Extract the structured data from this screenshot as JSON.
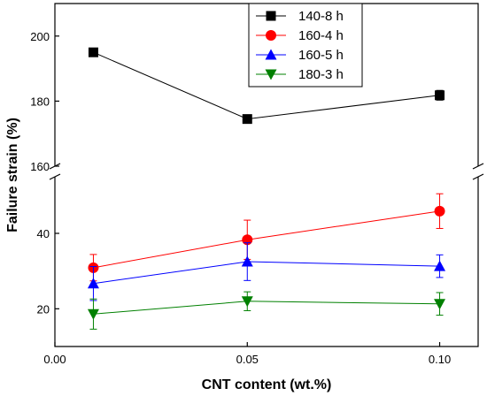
{
  "chart_data": {
    "type": "line",
    "title": "",
    "xlabel": "CNT content (wt.%)",
    "ylabel": "Failure strain (%)",
    "xlim": [
      0.0,
      0.11
    ],
    "xticks": [
      "0.00",
      "0.05",
      "0.10"
    ],
    "xtick_values": [
      0.0,
      0.05,
      0.1
    ],
    "y_broken_axis": true,
    "y_segments": [
      {
        "name": "upper",
        "ylim": [
          160,
          210
        ],
        "ticks": [
          160,
          180,
          200
        ],
        "tick_labels": [
          "160",
          "180",
          "200"
        ]
      },
      {
        "name": "lower",
        "ylim": [
          10,
          55
        ],
        "ticks": [
          20,
          40
        ],
        "tick_labels": [
          "20",
          "40"
        ]
      }
    ],
    "legend": {
      "position": "top-right"
    },
    "series": [
      {
        "name": "140-8 h",
        "color": "#000000",
        "marker": "square",
        "x": [
          0.01,
          0.05,
          0.1
        ],
        "y": [
          195.0,
          174.5,
          181.8
        ],
        "err": [
          0.0,
          0.0,
          1.5
        ]
      },
      {
        "name": "160-4 h",
        "color": "#ff0000",
        "marker": "circle",
        "x": [
          0.01,
          0.05,
          0.1
        ],
        "y": [
          30.9,
          38.3,
          45.9
        ],
        "err": [
          3.5,
          5.2,
          4.6
        ]
      },
      {
        "name": "160-5 h",
        "color": "#0000ff",
        "marker": "triangle-up",
        "x": [
          0.01,
          0.05,
          0.1
        ],
        "y": [
          26.7,
          32.5,
          31.3
        ],
        "err": [
          4.5,
          5.0,
          3.0
        ]
      },
      {
        "name": "180-3 h",
        "color": "#008000",
        "marker": "triangle-down",
        "x": [
          0.01,
          0.05,
          0.1
        ],
        "y": [
          18.6,
          22.0,
          21.3
        ],
        "err": [
          4.0,
          2.5,
          3.0
        ]
      }
    ]
  }
}
